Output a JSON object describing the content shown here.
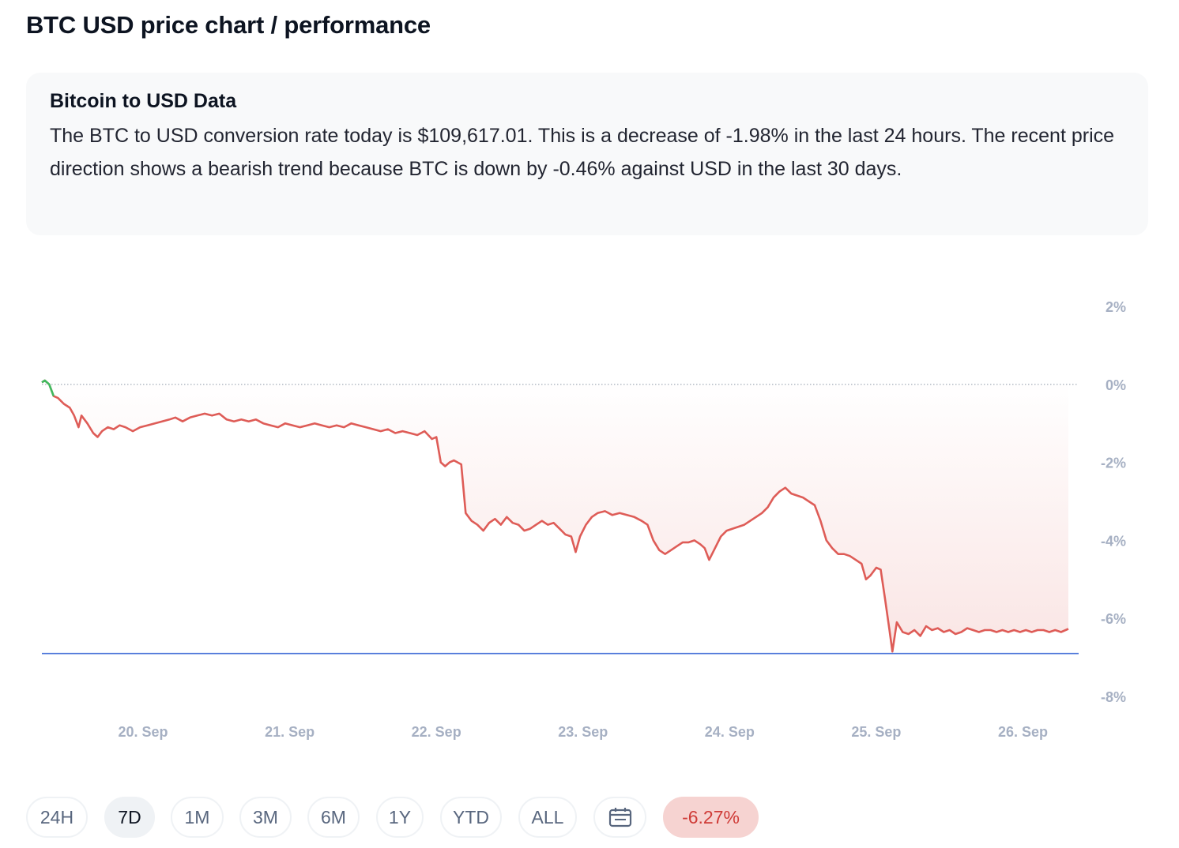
{
  "page": {
    "title": "BTC USD price chart / performance"
  },
  "info": {
    "heading": "Bitcoin to USD Data",
    "text": "The BTC to USD conversion rate today is $109,617.01. This is a decrease of -1.98% in the last 24 hours. The recent price direction shows a bearish trend because BTC is down by -0.46% against USD in the last 30 days."
  },
  "range_buttons": [
    {
      "label": "24H",
      "active": false
    },
    {
      "label": "7D",
      "active": true
    },
    {
      "label": "1M",
      "active": false
    },
    {
      "label": "3M",
      "active": false
    },
    {
      "label": "6M",
      "active": false
    },
    {
      "label": "1Y",
      "active": false
    },
    {
      "label": "YTD",
      "active": false
    },
    {
      "label": "ALL",
      "active": false
    }
  ],
  "calendar_icon": "calendar-icon",
  "performance_badge": "-6.27%",
  "colors": {
    "line_negative": "#de5c57",
    "line_positive": "#3fba5f",
    "baseline_min": "#4a74d9",
    "badge_bg": "#f6d3d1",
    "badge_text": "#cf3b37"
  },
  "chart_data": {
    "type": "line",
    "title": "",
    "xlabel": "",
    "ylabel": "",
    "y_unit": "%",
    "ylim": [
      -8,
      2
    ],
    "yticks": [
      2,
      0,
      -2,
      -4,
      -6,
      -8
    ],
    "ytick_labels": [
      "2%",
      "0%",
      "-2%",
      "-4%",
      "-6%",
      "-8%"
    ],
    "x_range_days": [
      19.31,
      26.31
    ],
    "xticks": [
      20,
      21,
      22,
      23,
      24,
      25,
      26
    ],
    "xtick_labels": [
      "20. Sep",
      "21. Sep",
      "22. Sep",
      "23. Sep",
      "24. Sep",
      "25. Sep",
      "26. Sep"
    ],
    "reference_line": {
      "label": "0%",
      "value": 0,
      "style": "dotted"
    },
    "min_line": {
      "value": -6.9
    },
    "series": [
      {
        "points": [
          [
            19.31,
            0.05
          ],
          [
            19.33,
            0.1
          ],
          [
            19.36,
            0.0
          ],
          [
            19.39,
            -0.3
          ],
          [
            19.42,
            -0.35
          ],
          [
            19.46,
            -0.5
          ],
          [
            19.5,
            -0.6
          ],
          [
            19.53,
            -0.8
          ],
          [
            19.56,
            -1.1
          ],
          [
            19.58,
            -0.8
          ],
          [
            19.62,
            -1.0
          ],
          [
            19.66,
            -1.25
          ],
          [
            19.69,
            -1.35
          ],
          [
            19.72,
            -1.2
          ],
          [
            19.76,
            -1.1
          ],
          [
            19.8,
            -1.15
          ],
          [
            19.84,
            -1.05
          ],
          [
            19.88,
            -1.1
          ],
          [
            19.93,
            -1.2
          ],
          [
            19.98,
            -1.1
          ],
          [
            20.03,
            -1.05
          ],
          [
            20.08,
            -1.0
          ],
          [
            20.13,
            -0.95
          ],
          [
            20.18,
            -0.9
          ],
          [
            20.22,
            -0.85
          ],
          [
            20.27,
            -0.95
          ],
          [
            20.32,
            -0.85
          ],
          [
            20.37,
            -0.8
          ],
          [
            20.42,
            -0.75
          ],
          [
            20.47,
            -0.8
          ],
          [
            20.52,
            -0.75
          ],
          [
            20.57,
            -0.9
          ],
          [
            20.62,
            -0.95
          ],
          [
            20.67,
            -0.9
          ],
          [
            20.72,
            -0.95
          ],
          [
            20.77,
            -0.9
          ],
          [
            20.82,
            -1.0
          ],
          [
            20.87,
            -1.05
          ],
          [
            20.92,
            -1.1
          ],
          [
            20.97,
            -1.0
          ],
          [
            21.02,
            -1.05
          ],
          [
            21.07,
            -1.1
          ],
          [
            21.12,
            -1.05
          ],
          [
            21.17,
            -1.0
          ],
          [
            21.22,
            -1.05
          ],
          [
            21.27,
            -1.1
          ],
          [
            21.32,
            -1.05
          ],
          [
            21.37,
            -1.1
          ],
          [
            21.42,
            -1.0
          ],
          [
            21.47,
            -1.05
          ],
          [
            21.52,
            -1.1
          ],
          [
            21.57,
            -1.15
          ],
          [
            21.62,
            -1.2
          ],
          [
            21.67,
            -1.15
          ],
          [
            21.72,
            -1.25
          ],
          [
            21.77,
            -1.2
          ],
          [
            21.82,
            -1.25
          ],
          [
            21.87,
            -1.3
          ],
          [
            21.92,
            -1.2
          ],
          [
            21.97,
            -1.4
          ],
          [
            22.0,
            -1.35
          ],
          [
            22.03,
            -2.0
          ],
          [
            22.06,
            -2.1
          ],
          [
            22.09,
            -2.0
          ],
          [
            22.12,
            -1.95
          ],
          [
            22.17,
            -2.05
          ],
          [
            22.2,
            -3.3
          ],
          [
            22.24,
            -3.5
          ],
          [
            22.28,
            -3.6
          ],
          [
            22.32,
            -3.75
          ],
          [
            22.36,
            -3.55
          ],
          [
            22.4,
            -3.45
          ],
          [
            22.44,
            -3.6
          ],
          [
            22.48,
            -3.4
          ],
          [
            22.52,
            -3.55
          ],
          [
            22.56,
            -3.6
          ],
          [
            22.6,
            -3.75
          ],
          [
            22.64,
            -3.7
          ],
          [
            22.68,
            -3.6
          ],
          [
            22.72,
            -3.5
          ],
          [
            22.76,
            -3.6
          ],
          [
            22.8,
            -3.55
          ],
          [
            22.84,
            -3.7
          ],
          [
            22.88,
            -3.85
          ],
          [
            22.92,
            -3.9
          ],
          [
            22.95,
            -4.3
          ],
          [
            22.98,
            -3.9
          ],
          [
            23.02,
            -3.6
          ],
          [
            23.06,
            -3.4
          ],
          [
            23.1,
            -3.3
          ],
          [
            23.15,
            -3.25
          ],
          [
            23.2,
            -3.35
          ],
          [
            23.25,
            -3.3
          ],
          [
            23.3,
            -3.35
          ],
          [
            23.35,
            -3.4
          ],
          [
            23.4,
            -3.5
          ],
          [
            23.44,
            -3.6
          ],
          [
            23.48,
            -4.0
          ],
          [
            23.52,
            -4.25
          ],
          [
            23.56,
            -4.35
          ],
          [
            23.6,
            -4.25
          ],
          [
            23.64,
            -4.15
          ],
          [
            23.68,
            -4.05
          ],
          [
            23.72,
            -4.05
          ],
          [
            23.76,
            -4.0
          ],
          [
            23.8,
            -4.1
          ],
          [
            23.83,
            -4.2
          ],
          [
            23.86,
            -4.5
          ],
          [
            23.9,
            -4.2
          ],
          [
            23.94,
            -3.9
          ],
          [
            23.98,
            -3.75
          ],
          [
            24.02,
            -3.7
          ],
          [
            24.06,
            -3.65
          ],
          [
            24.1,
            -3.6
          ],
          [
            24.14,
            -3.5
          ],
          [
            24.18,
            -3.4
          ],
          [
            24.22,
            -3.3
          ],
          [
            24.26,
            -3.15
          ],
          [
            24.3,
            -2.9
          ],
          [
            24.34,
            -2.75
          ],
          [
            24.38,
            -2.65
          ],
          [
            24.42,
            -2.8
          ],
          [
            24.46,
            -2.85
          ],
          [
            24.5,
            -2.9
          ],
          [
            24.54,
            -3.0
          ],
          [
            24.58,
            -3.1
          ],
          [
            24.62,
            -3.5
          ],
          [
            24.66,
            -4.0
          ],
          [
            24.7,
            -4.2
          ],
          [
            24.74,
            -4.35
          ],
          [
            24.78,
            -4.35
          ],
          [
            24.82,
            -4.4
          ],
          [
            24.86,
            -4.5
          ],
          [
            24.9,
            -4.6
          ],
          [
            24.93,
            -5.0
          ],
          [
            24.96,
            -4.9
          ],
          [
            25.0,
            -4.7
          ],
          [
            25.03,
            -4.75
          ],
          [
            25.06,
            -5.5
          ],
          [
            25.09,
            -6.3
          ],
          [
            25.11,
            -6.85
          ],
          [
            25.14,
            -6.1
          ],
          [
            25.18,
            -6.35
          ],
          [
            25.22,
            -6.4
          ],
          [
            25.26,
            -6.3
          ],
          [
            25.3,
            -6.45
          ],
          [
            25.34,
            -6.2
          ],
          [
            25.38,
            -6.3
          ],
          [
            25.42,
            -6.25
          ],
          [
            25.46,
            -6.35
          ],
          [
            25.5,
            -6.3
          ],
          [
            25.54,
            -6.4
          ],
          [
            25.58,
            -6.35
          ],
          [
            25.62,
            -6.25
          ],
          [
            25.66,
            -6.3
          ],
          [
            25.7,
            -6.35
          ],
          [
            25.74,
            -6.3
          ],
          [
            25.78,
            -6.3
          ],
          [
            25.82,
            -6.35
          ],
          [
            25.86,
            -6.3
          ],
          [
            25.9,
            -6.35
          ],
          [
            25.94,
            -6.3
          ],
          [
            25.98,
            -6.35
          ],
          [
            26.02,
            -6.3
          ],
          [
            26.06,
            -6.35
          ],
          [
            26.1,
            -6.3
          ],
          [
            26.14,
            -6.3
          ],
          [
            26.18,
            -6.35
          ],
          [
            26.22,
            -6.3
          ],
          [
            26.26,
            -6.35
          ],
          [
            26.31,
            -6.27
          ]
        ]
      }
    ],
    "grid": false,
    "legend": "none"
  }
}
